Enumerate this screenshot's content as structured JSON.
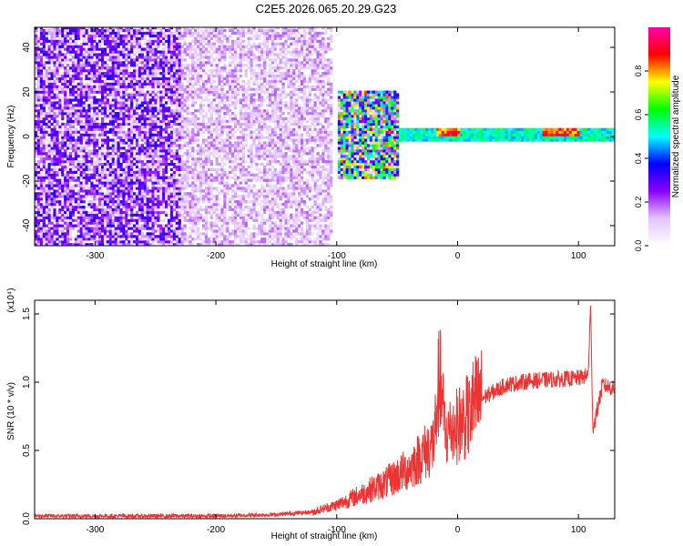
{
  "page_title": "C2E5.2026.065.20.29.G23",
  "chart_data": [
    {
      "type": "heatmap",
      "xlabel": "Height of straight line (km)",
      "ylabel": "Frequency (Hz)",
      "xlim": [
        -350,
        130
      ],
      "ylim": [
        -49,
        49
      ],
      "xticks": [
        -300,
        -200,
        -100,
        0,
        100
      ],
      "yticks": [
        -40,
        -20,
        0,
        20,
        40
      ],
      "colorbar": {
        "label": "Normalized spectral amplitude",
        "range": [
          0,
          1
        ],
        "ticks": [
          "0.0",
          "0.2",
          "0.4",
          "0.6",
          "0.8"
        ],
        "tick_values": [
          0.0,
          0.2,
          0.4,
          0.6,
          0.8
        ],
        "colors": [
          "#ffffff",
          "#e3c4fd",
          "#8b00ff",
          "#0000ff",
          "#00ffff",
          "#00ff00",
          "#ffff00",
          "#ff0000",
          "#ff00aa"
        ]
      },
      "features": [
        {
          "x_range": [
            -350,
            -230
          ],
          "freq_range": [
            -49,
            49
          ],
          "amplitude": 0.15
        },
        {
          "x_range": [
            -230,
            -105
          ],
          "freq_range": [
            -49,
            49
          ],
          "amplitude": 0.08
        },
        {
          "x_range": [
            -100,
            -50
          ],
          "freq_range": [
            -20,
            20
          ],
          "amplitude": 0.35
        },
        {
          "x_range": [
            -50,
            130
          ],
          "freq_range": [
            -3,
            3
          ],
          "amplitude": 0.6
        },
        {
          "x_range": [
            -20,
            0
          ],
          "freq_range": [
            0,
            3
          ],
          "amplitude": 0.95
        },
        {
          "x_range": [
            70,
            100
          ],
          "freq_range": [
            0,
            3
          ],
          "amplitude": 0.95
        }
      ]
    },
    {
      "type": "line",
      "xlabel": "Height of straight line (km)",
      "ylabel": "SNR (10 * v/v)",
      "y_multiplier": "(x10⁴)",
      "xlim": [
        -350,
        130
      ],
      "ylim": [
        0,
        1.6
      ],
      "xticks": [
        -300,
        -200,
        -100,
        0,
        100
      ],
      "yticks": [
        "0.0",
        "0.5",
        "1.0",
        "1.5"
      ],
      "ytick_values": [
        0.0,
        0.5,
        1.0,
        1.5
      ],
      "color": "#ee3333",
      "x": [
        -350,
        -300,
        -250,
        -200,
        -150,
        -120,
        -100,
        -80,
        -60,
        -40,
        -20,
        -15,
        -10,
        0,
        20,
        40,
        60,
        80,
        100,
        108,
        110,
        112,
        120,
        130
      ],
      "y": [
        0.02,
        0.02,
        0.02,
        0.02,
        0.03,
        0.05,
        0.1,
        0.18,
        0.26,
        0.37,
        0.55,
        1.1,
        0.65,
        0.72,
        0.88,
        0.98,
        1.01,
        1.02,
        1.03,
        1.05,
        1.55,
        0.65,
        0.98,
        0.95
      ]
    }
  ]
}
